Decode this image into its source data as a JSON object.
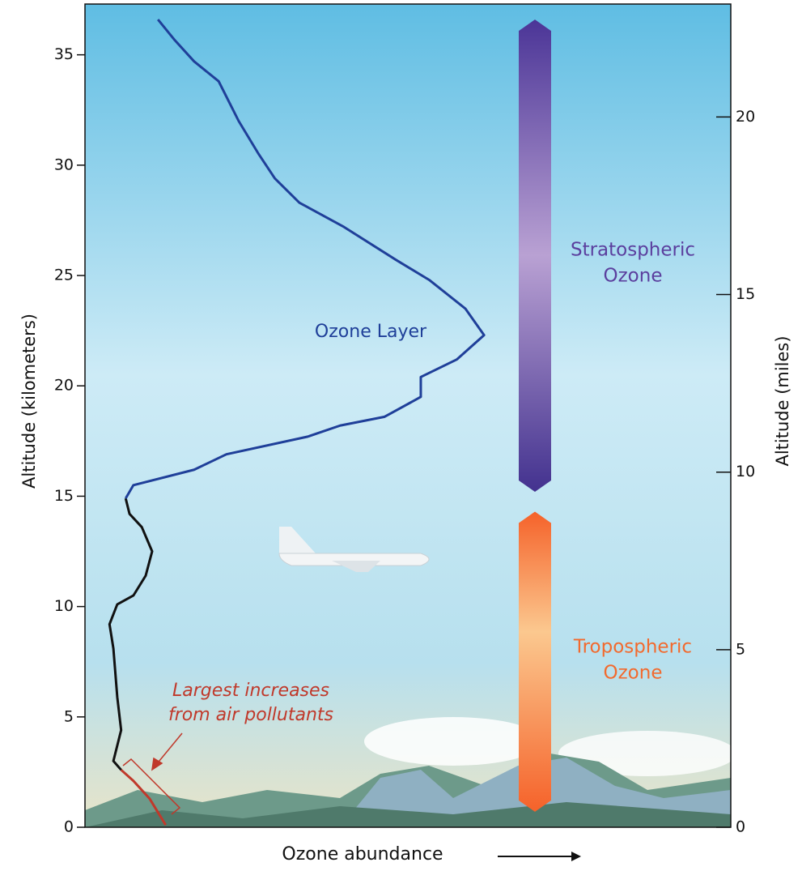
{
  "chart_data": {
    "type": "line",
    "ylabel": "Altitude (kilometers)",
    "y2label": "Altitude (miles)",
    "xlabel": "Ozone abundance",
    "xlim": [
      0,
      100
    ],
    "ylim": [
      0,
      37.3
    ],
    "yticks": [
      0,
      5,
      10,
      15,
      20,
      25,
      30,
      35
    ],
    "y2lim": [
      0,
      23.18
    ],
    "y2ticks": [
      0,
      5,
      10,
      15,
      20
    ],
    "series": [
      {
        "color": "#c0392b",
        "x": [
          12.5,
          10.0,
          7.5,
          5.6
        ],
        "values": [
          0.1,
          1.3,
          2.1,
          2.6
        ]
      },
      {
        "color": "#111111",
        "x": [
          5.6,
          4.4,
          5.6,
          5.0,
          4.4,
          3.8,
          5.0,
          7.5,
          9.4,
          10.4,
          8.8,
          6.9,
          6.3
        ],
        "values": [
          2.6,
          3.0,
          4.4,
          5.9,
          8.1,
          9.2,
          10.1,
          10.5,
          11.4,
          12.5,
          13.6,
          14.2,
          14.9
        ]
      },
      {
        "color": "#1f3f99",
        "x": [
          6.3,
          7.5,
          16.9,
          21.9,
          34.5,
          39.5,
          46.4,
          52.0,
          52.0,
          57.6,
          61.8,
          58.9,
          53.3,
          48.2,
          40.1,
          33.2,
          29.4,
          26.9,
          23.8,
          20.7,
          16.9,
          13.8,
          11.3
        ],
        "values": [
          14.9,
          15.5,
          16.2,
          16.9,
          17.7,
          18.2,
          18.6,
          19.5,
          20.4,
          21.2,
          22.3,
          23.5,
          24.8,
          25.7,
          27.2,
          28.3,
          29.4,
          30.5,
          32.0,
          33.8,
          34.7,
          35.7,
          36.6
        ]
      }
    ],
    "bands": [
      {
        "label": [
          "Stratospheric",
          "Ozone"
        ],
        "range": [
          15.2,
          36.6
        ],
        "color": "#5b3f9e"
      },
      {
        "label": [
          "Tropospheric",
          "Ozone"
        ],
        "range": [
          0.7,
          14.3
        ],
        "color": "#f26a2e"
      }
    ],
    "annotations": {
      "ozone_layer": "Ozone Layer",
      "pollutants": [
        "Largest increases",
        "from air pollutants"
      ]
    }
  }
}
